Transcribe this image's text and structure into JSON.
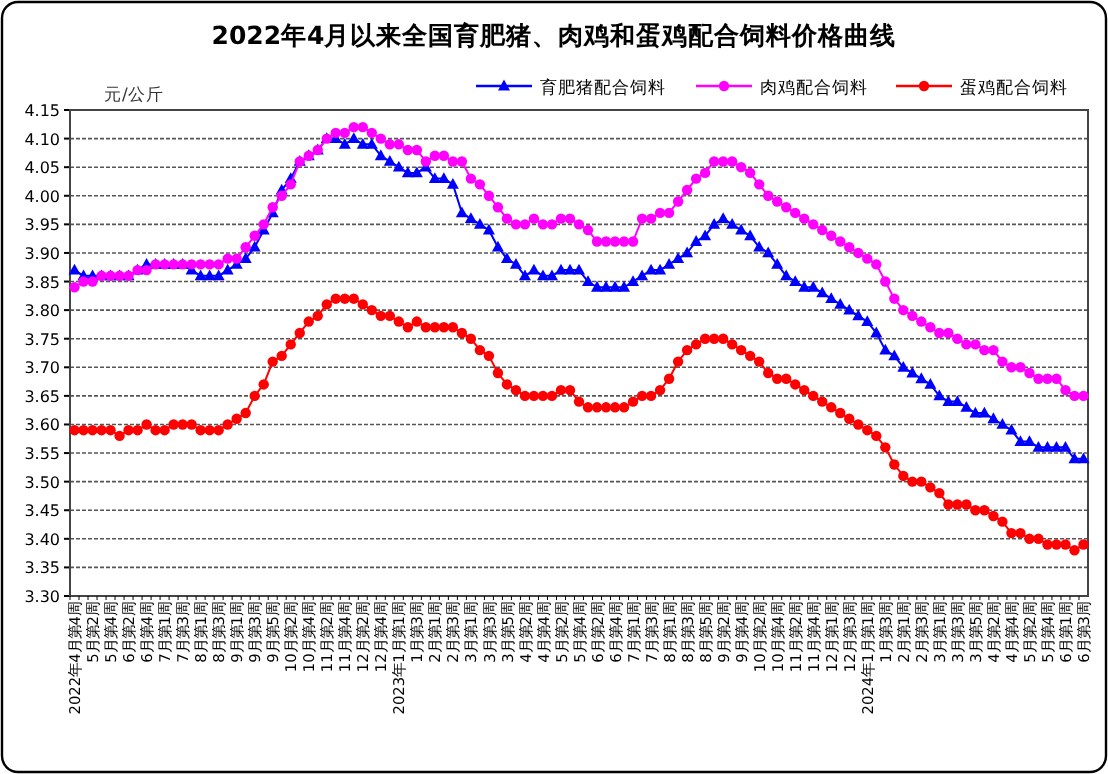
{
  "chart_data": {
    "type": "line",
    "title": "2022年4月以来全国育肥猪、肉鸡和蛋鸡配合饲料价格曲线",
    "ylabel": "元/公斤",
    "categories": [
      "2022年4月第4周",
      null,
      "5月第2周",
      null,
      "5月第4周",
      null,
      "6月第2周",
      null,
      "6月第4周",
      null,
      "7月第1周",
      null,
      "7月第3周",
      null,
      "8月第1周",
      null,
      "8月第3周",
      null,
      "9月第1周",
      null,
      "9月第3周",
      null,
      "9月第5周",
      null,
      "10月第2周",
      null,
      "10月第4周",
      null,
      "11月第2周",
      null,
      "11月第4周",
      null,
      "12月第2周",
      null,
      "12月第4周",
      null,
      "2023年1月第1周",
      null,
      "1月第3周",
      null,
      "2月第1周",
      null,
      "2月第3周",
      null,
      "3月第1周",
      null,
      "3月第3周",
      null,
      "3月第5周",
      null,
      "4月第2周",
      null,
      "4月第4周",
      null,
      "5月第2周",
      null,
      "5月第4周",
      null,
      "6月第2周",
      null,
      "6月第4周",
      null,
      "7月第1周",
      null,
      "7月第3周",
      null,
      "8月第1周",
      null,
      "8月第3周",
      null,
      "8月第5周",
      null,
      "9月第2周",
      null,
      "9月第4周",
      null,
      "10月第2周",
      null,
      "10月第4周",
      null,
      "11月第2周",
      null,
      "11月第4周",
      null,
      "12月第1周",
      null,
      "12月第3周",
      null,
      "2024年1月第1周",
      null,
      "1月第3周",
      null,
      "2月第1周",
      null,
      "2月第3周",
      null,
      "3月第1周",
      null,
      "3月第3周",
      null,
      "3月第5周",
      null,
      "4月第2周",
      null,
      "4月第4周",
      null,
      "5月第2周",
      null,
      "5月第4周",
      null,
      "6月第1周",
      null,
      "6月第3周"
    ],
    "series": [
      {
        "name": "育肥猪配合饲料",
        "color": "#0000ff",
        "marker": "triangle",
        "values": [
          3.87,
          3.86,
          3.86,
          3.86,
          3.86,
          3.86,
          3.86,
          3.87,
          3.88,
          3.88,
          3.88,
          3.88,
          3.88,
          3.87,
          3.86,
          3.86,
          3.86,
          3.87,
          3.88,
          3.89,
          3.91,
          3.94,
          3.97,
          4.01,
          4.03,
          4.06,
          4.07,
          4.08,
          4.1,
          4.1,
          4.09,
          4.1,
          4.09,
          4.09,
          4.07,
          4.06,
          4.05,
          4.04,
          4.04,
          4.05,
          4.03,
          4.03,
          4.02,
          3.97,
          3.96,
          3.95,
          3.94,
          3.91,
          3.89,
          3.88,
          3.86,
          3.87,
          3.86,
          3.86,
          3.87,
          3.87,
          3.87,
          3.85,
          3.84,
          3.84,
          3.84,
          3.84,
          3.85,
          3.86,
          3.87,
          3.87,
          3.88,
          3.89,
          3.9,
          3.92,
          3.93,
          3.95,
          3.96,
          3.95,
          3.94,
          3.93,
          3.91,
          3.9,
          3.88,
          3.86,
          3.85,
          3.84,
          3.84,
          3.83,
          3.82,
          3.81,
          3.8,
          3.79,
          3.78,
          3.76,
          3.73,
          3.72,
          3.7,
          3.69,
          3.68,
          3.67,
          3.65,
          3.64,
          3.64,
          3.63,
          3.62,
          3.62,
          3.61,
          3.6,
          3.59,
          3.57,
          3.57,
          3.56,
          3.56,
          3.56,
          3.56,
          3.54,
          3.54
        ]
      },
      {
        "name": "肉鸡配合饲料",
        "color": "#ff00ff",
        "marker": "circle",
        "values": [
          3.84,
          3.85,
          3.85,
          3.86,
          3.86,
          3.86,
          3.86,
          3.87,
          3.87,
          3.88,
          3.88,
          3.88,
          3.88,
          3.88,
          3.88,
          3.88,
          3.88,
          3.89,
          3.89,
          3.91,
          3.93,
          3.95,
          3.98,
          4.0,
          4.02,
          4.06,
          4.07,
          4.08,
          4.1,
          4.11,
          4.11,
          4.12,
          4.12,
          4.11,
          4.1,
          4.09,
          4.09,
          4.08,
          4.08,
          4.06,
          4.07,
          4.07,
          4.06,
          4.06,
          4.03,
          4.02,
          4.0,
          3.98,
          3.96,
          3.95,
          3.95,
          3.96,
          3.95,
          3.95,
          3.96,
          3.96,
          3.95,
          3.94,
          3.92,
          3.92,
          3.92,
          3.92,
          3.92,
          3.96,
          3.96,
          3.97,
          3.97,
          3.99,
          4.01,
          4.03,
          4.04,
          4.06,
          4.06,
          4.06,
          4.05,
          4.04,
          4.02,
          4.0,
          3.99,
          3.98,
          3.97,
          3.96,
          3.95,
          3.94,
          3.93,
          3.92,
          3.91,
          3.9,
          3.89,
          3.88,
          3.85,
          3.82,
          3.8,
          3.79,
          3.78,
          3.77,
          3.76,
          3.76,
          3.75,
          3.74,
          3.74,
          3.73,
          3.73,
          3.71,
          3.7,
          3.7,
          3.69,
          3.68,
          3.68,
          3.68,
          3.66,
          3.65,
          3.65
        ]
      },
      {
        "name": "蛋鸡配合饲料",
        "color": "#ff0000",
        "marker": "circle",
        "values": [
          3.59,
          3.59,
          3.59,
          3.59,
          3.59,
          3.58,
          3.59,
          3.59,
          3.6,
          3.59,
          3.59,
          3.6,
          3.6,
          3.6,
          3.59,
          3.59,
          3.59,
          3.6,
          3.61,
          3.62,
          3.65,
          3.67,
          3.71,
          3.72,
          3.74,
          3.76,
          3.78,
          3.79,
          3.81,
          3.82,
          3.82,
          3.82,
          3.81,
          3.8,
          3.79,
          3.79,
          3.78,
          3.77,
          3.78,
          3.77,
          3.77,
          3.77,
          3.77,
          3.76,
          3.75,
          3.73,
          3.72,
          3.69,
          3.67,
          3.66,
          3.65,
          3.65,
          3.65,
          3.65,
          3.66,
          3.66,
          3.64,
          3.63,
          3.63,
          3.63,
          3.63,
          3.63,
          3.64,
          3.65,
          3.65,
          3.66,
          3.68,
          3.71,
          3.73,
          3.74,
          3.75,
          3.75,
          3.75,
          3.74,
          3.73,
          3.72,
          3.71,
          3.69,
          3.68,
          3.68,
          3.67,
          3.66,
          3.65,
          3.64,
          3.63,
          3.62,
          3.61,
          3.6,
          3.59,
          3.58,
          3.56,
          3.53,
          3.51,
          3.5,
          3.5,
          3.49,
          3.48,
          3.46,
          3.46,
          3.46,
          3.45,
          3.45,
          3.44,
          3.43,
          3.41,
          3.41,
          3.4,
          3.4,
          3.39,
          3.39,
          3.39,
          3.38,
          3.39
        ]
      }
    ],
    "ylim": [
      3.3,
      4.15
    ],
    "yticks": [
      {
        "value": 3.3,
        "label": "3.30"
      },
      {
        "value": 3.35,
        "label": "3.35"
      },
      {
        "value": 3.4,
        "label": "3.40"
      },
      {
        "value": 3.45,
        "label": "3.45"
      },
      {
        "value": 3.5,
        "label": "3.50"
      },
      {
        "value": 3.55,
        "label": "3.55"
      },
      {
        "value": 3.6,
        "label": "3.60"
      },
      {
        "value": 3.65,
        "label": "3.65"
      },
      {
        "value": 3.7,
        "label": "3.70"
      },
      {
        "value": 3.75,
        "label": "3.75"
      },
      {
        "value": 3.8,
        "label": "3.80"
      },
      {
        "value": 3.85,
        "label": "3.85"
      },
      {
        "value": 3.9,
        "label": "3.90"
      },
      {
        "value": 3.95,
        "label": "3.95"
      },
      {
        "value": 4.0,
        "label": "4.00"
      },
      {
        "value": 4.05,
        "label": "4.05"
      },
      {
        "value": 4.1,
        "label": "4.10"
      },
      {
        "value": 4.15,
        "label": "4.15"
      }
    ],
    "grid": "y",
    "legend": "top right",
    "line_style": "solid"
  }
}
